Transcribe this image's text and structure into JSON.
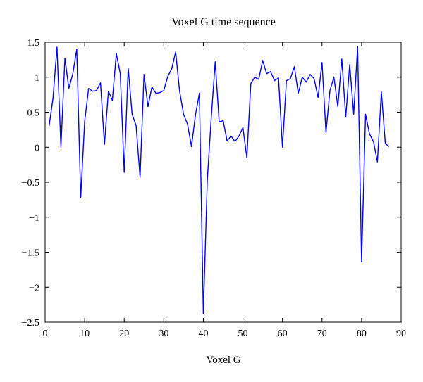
{
  "chart_data": {
    "type": "line",
    "title": "Voxel G time sequence",
    "xlabel": "Voxel G",
    "ylabel": "",
    "xlim": [
      0,
      90
    ],
    "ylim": [
      -2.5,
      1.5
    ],
    "xticks": [
      0,
      10,
      20,
      30,
      40,
      50,
      60,
      70,
      80,
      90
    ],
    "yticks": [
      -2.5,
      -2,
      -1.5,
      -1,
      -0.5,
      0,
      0.5,
      1,
      1.5
    ],
    "xtick_labels": [
      "0",
      "10",
      "20",
      "30",
      "40",
      "50",
      "60",
      "70",
      "80",
      "90"
    ],
    "ytick_labels": [
      "−2.5",
      "−2",
      "−1.5",
      "−1",
      "−0.5",
      "0",
      "0.5",
      "1",
      "1.5"
    ],
    "grid": false,
    "series": [
      {
        "color": "#0000ff",
        "x": [
          1,
          2,
          3,
          4,
          5,
          6,
          7,
          8,
          9,
          10,
          11,
          12,
          13,
          14,
          15,
          16,
          17,
          18,
          19,
          20,
          21,
          22,
          23,
          24,
          25,
          26,
          27,
          28,
          29,
          30,
          31,
          32,
          33,
          34,
          35,
          36,
          37,
          38,
          39,
          40,
          41,
          42,
          43,
          44,
          45,
          46,
          47,
          48,
          49,
          50,
          51,
          52,
          53,
          54,
          55,
          56,
          57,
          58,
          59,
          60,
          61,
          62,
          63,
          64,
          65,
          66,
          67,
          68,
          69,
          70,
          71,
          72,
          73,
          74,
          75,
          76,
          77,
          78,
          79,
          80,
          81,
          82,
          83,
          84,
          85,
          86,
          87
        ],
        "y": [
          0.3,
          0.7,
          1.43,
          0.0,
          1.27,
          0.84,
          1.05,
          1.4,
          -0.72,
          0.37,
          0.84,
          0.8,
          0.81,
          0.92,
          0.04,
          0.8,
          0.67,
          1.34,
          1.05,
          -0.36,
          1.13,
          0.47,
          0.31,
          -0.43,
          1.04,
          0.58,
          0.86,
          0.77,
          0.78,
          0.81,
          1.01,
          1.12,
          1.36,
          0.8,
          0.47,
          0.33,
          0.01,
          0.46,
          0.77,
          -2.38,
          -0.47,
          0.42,
          1.22,
          0.36,
          0.38,
          0.09,
          0.16,
          0.08,
          0.16,
          0.28,
          -0.15,
          0.91,
          1.0,
          0.97,
          1.24,
          1.05,
          1.08,
          0.95,
          0.99,
          0.0,
          0.95,
          0.98,
          1.15,
          0.77,
          1.0,
          0.93,
          1.04,
          0.98,
          0.71,
          1.21,
          0.21,
          0.81,
          1.0,
          0.58,
          1.26,
          0.43,
          1.18,
          0.47,
          1.44,
          -1.64,
          0.47,
          0.19,
          0.08,
          -0.21,
          0.79,
          0.05,
          0.01
        ]
      }
    ]
  }
}
